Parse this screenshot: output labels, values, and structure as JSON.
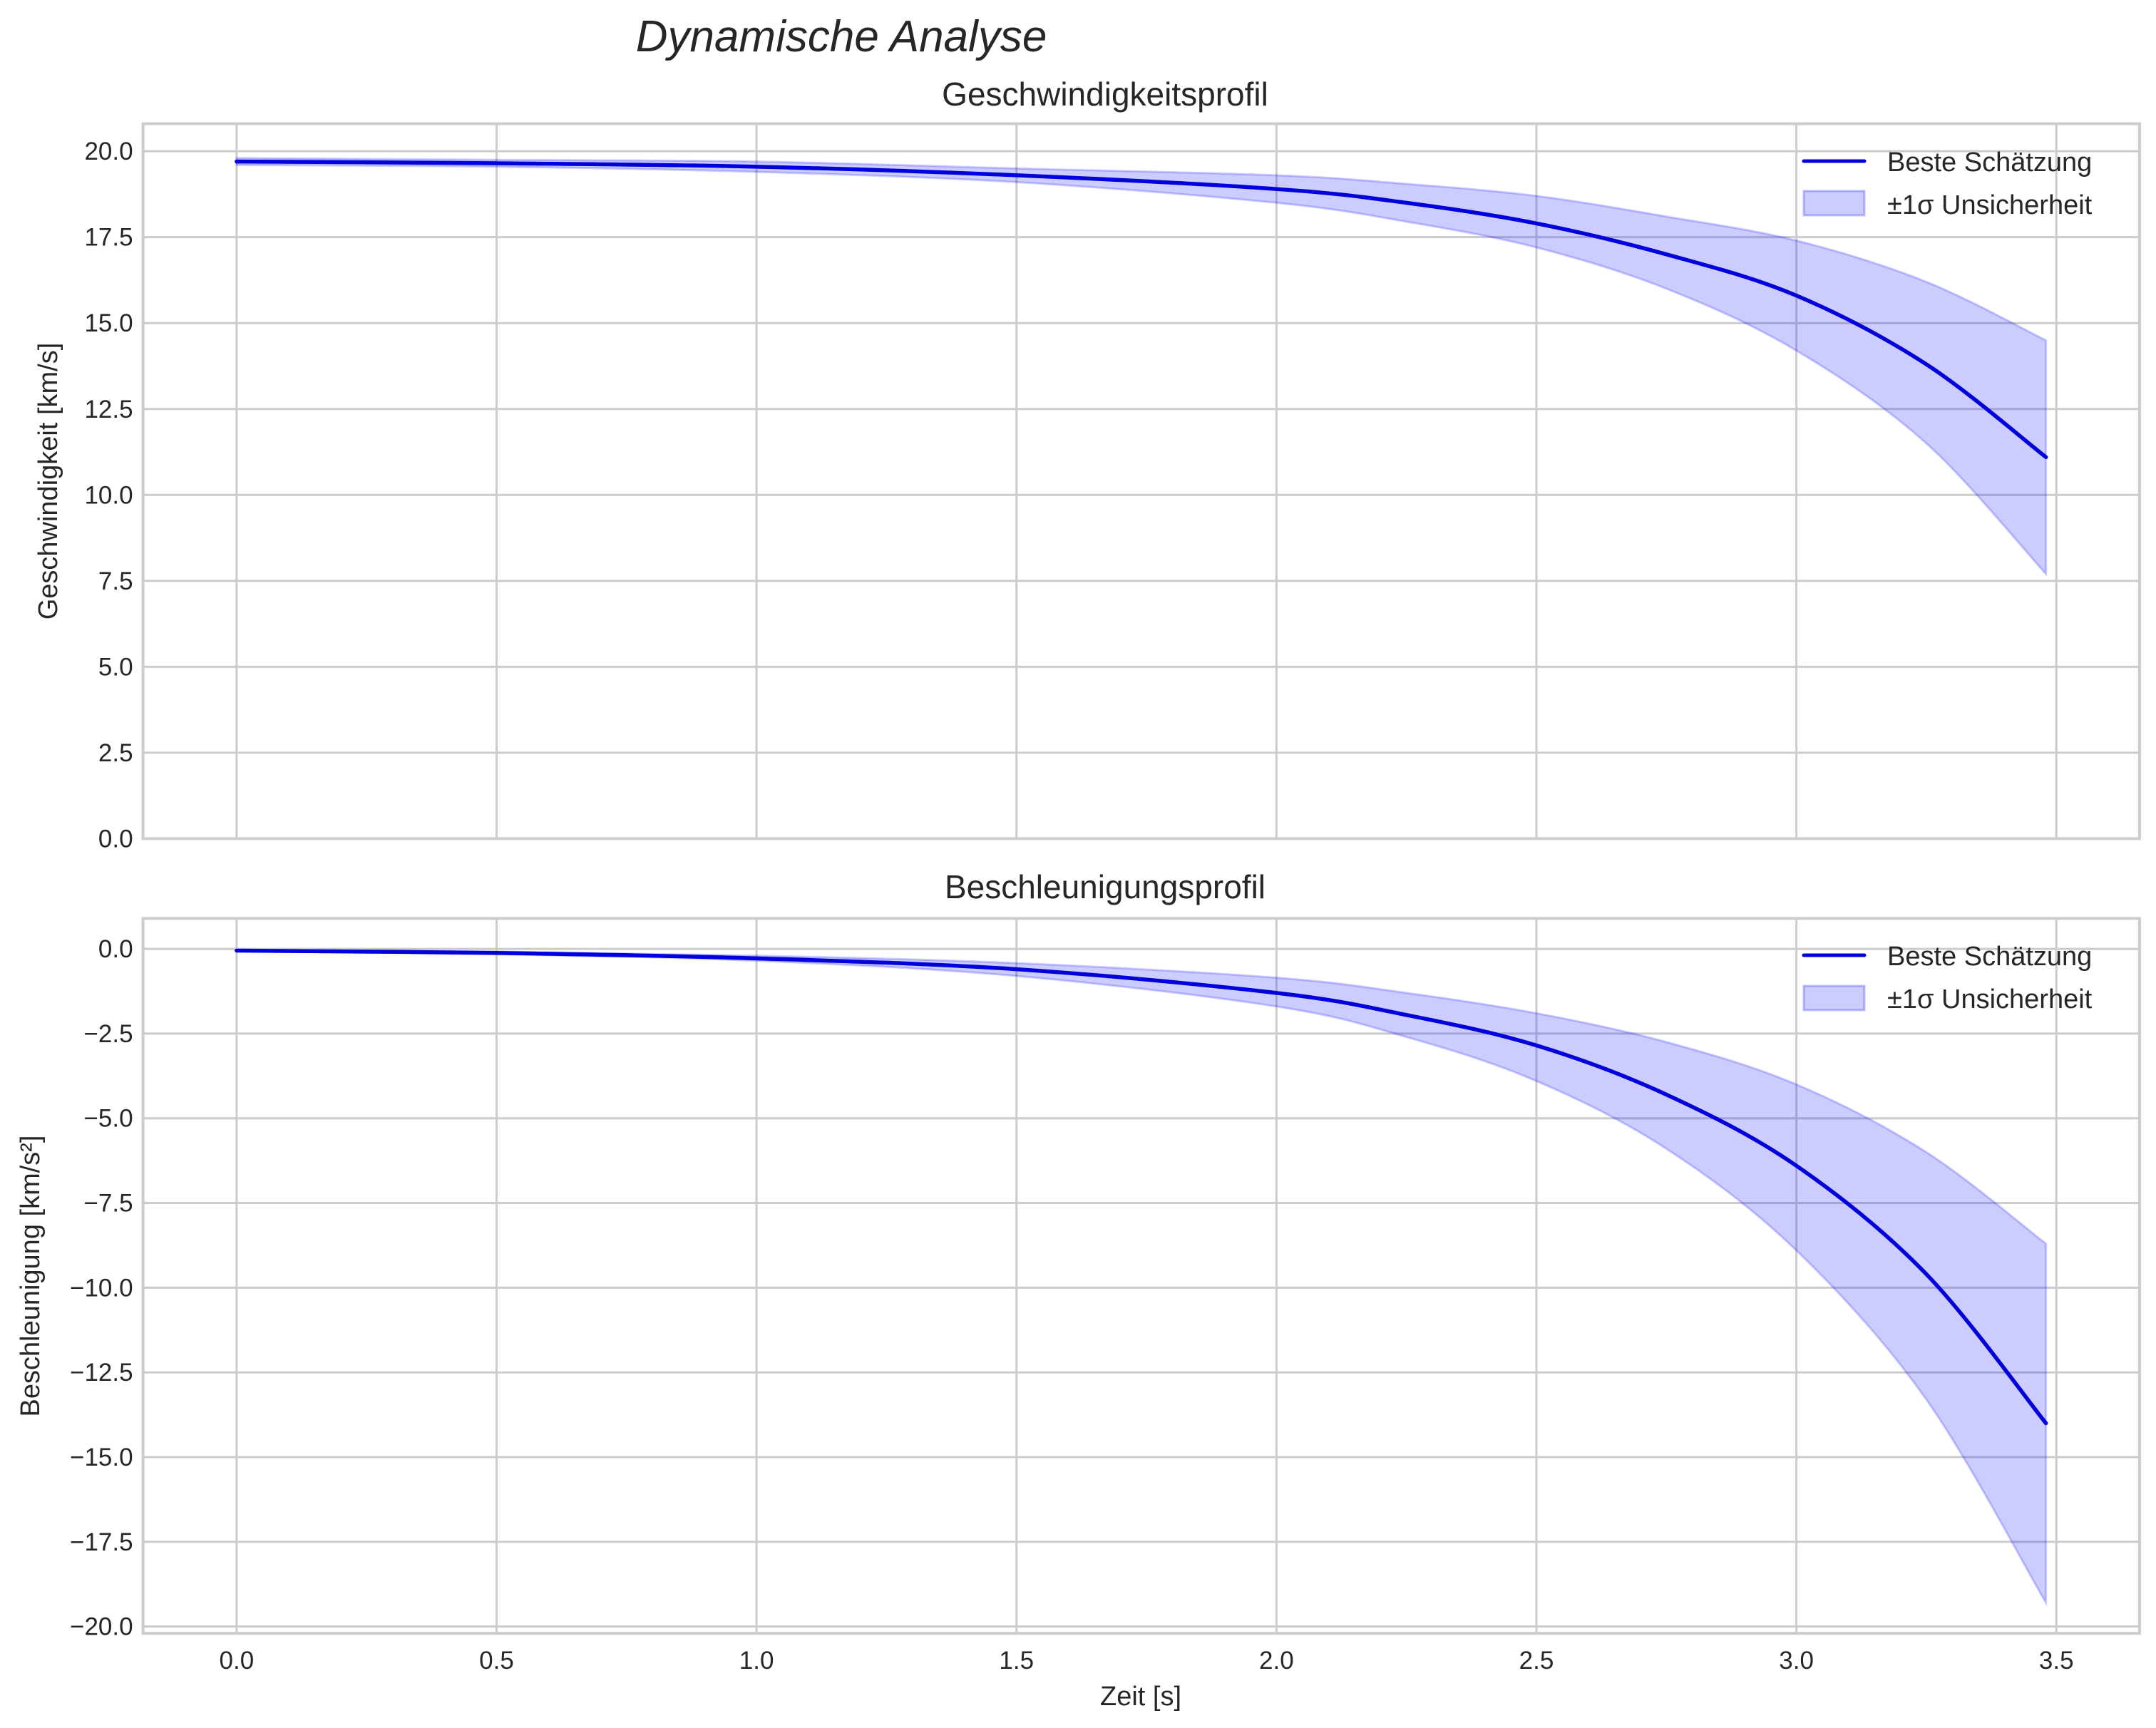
{
  "figure": {
    "suptitle": "Dynamische Analyse",
    "colors": {
      "line": "#0000dd",
      "band_fill": "#0000ff",
      "band_alpha": 0.2,
      "grid": "#cccccc",
      "spine": "#cccccc",
      "text": "#262626"
    }
  },
  "chart_data": [
    {
      "type": "line",
      "title": "Geschwindigkeitsprofil",
      "xlabel": "",
      "ylabel": "Geschwindigkeit [km/s]",
      "xlim": [
        -0.18,
        3.66
      ],
      "ylim": [
        0.0,
        20.8
      ],
      "grid": true,
      "legend_position": "upper right",
      "xticks": [
        "0.0",
        "0.5",
        "1.0",
        "1.5",
        "2.0",
        "2.5",
        "3.0",
        "3.5"
      ],
      "xtick_values": [
        0.0,
        0.5,
        1.0,
        1.5,
        2.0,
        2.5,
        3.0,
        3.5
      ],
      "yticks": [
        "0.0",
        "2.5",
        "5.0",
        "7.5",
        "10.0",
        "12.5",
        "15.0",
        "17.5",
        "20.0"
      ],
      "ytick_values": [
        0.0,
        2.5,
        5.0,
        7.5,
        10.0,
        12.5,
        15.0,
        17.5,
        20.0
      ],
      "x": [
        0.0,
        0.5,
        1.0,
        1.5,
        2.0,
        2.25,
        2.5,
        2.75,
        3.0,
        3.25,
        3.48
      ],
      "series": [
        {
          "name": "Beste Schätzung",
          "kind": "line",
          "values": [
            19.7,
            19.65,
            19.55,
            19.3,
            18.9,
            18.5,
            17.9,
            17.0,
            15.8,
            13.8,
            11.1
          ]
        },
        {
          "name": "±1σ Unsicherheit",
          "kind": "band",
          "lower": [
            19.6,
            19.55,
            19.4,
            19.1,
            18.5,
            17.95,
            17.2,
            16.0,
            14.2,
            11.5,
            7.7
          ],
          "upper": [
            19.8,
            19.75,
            19.7,
            19.5,
            19.3,
            19.05,
            18.7,
            18.1,
            17.4,
            16.2,
            14.5
          ]
        }
      ]
    },
    {
      "type": "line",
      "title": "Beschleunigungsprofil",
      "xlabel": "Zeit [s]",
      "ylabel": "Beschleunigung [km/s²]",
      "xlim": [
        -0.18,
        3.66
      ],
      "ylim": [
        -20.2,
        0.9
      ],
      "grid": true,
      "legend_position": "upper right",
      "xticks": [
        "0.0",
        "0.5",
        "1.0",
        "1.5",
        "2.0",
        "2.5",
        "3.0",
        "3.5"
      ],
      "xtick_values": [
        0.0,
        0.5,
        1.0,
        1.5,
        2.0,
        2.5,
        3.0,
        3.5
      ],
      "yticks": [
        "0.0",
        "−2.5",
        "−5.0",
        "−7.5",
        "−10.0",
        "−12.5",
        "−15.0",
        "−17.5",
        "−20.0"
      ],
      "ytick_values": [
        0.0,
        -2.5,
        -5.0,
        -7.5,
        -10.0,
        -12.5,
        -15.0,
        -17.5,
        -20.0
      ],
      "x": [
        0.0,
        0.5,
        1.0,
        1.5,
        2.0,
        2.25,
        2.5,
        2.75,
        3.0,
        3.25,
        3.48
      ],
      "series": [
        {
          "name": "Beste Schätzung",
          "kind": "line",
          "values": [
            -0.05,
            -0.12,
            -0.28,
            -0.6,
            -1.3,
            -1.95,
            -2.85,
            -4.3,
            -6.4,
            -9.6,
            -14.0
          ]
        },
        {
          "name": "±1σ Unsicherheit",
          "kind": "band",
          "lower": [
            -0.07,
            -0.16,
            -0.35,
            -0.8,
            -1.7,
            -2.6,
            -3.9,
            -5.9,
            -8.9,
            -13.3,
            -19.3
          ],
          "upper": [
            -0.03,
            -0.08,
            -0.2,
            -0.42,
            -0.85,
            -1.3,
            -1.9,
            -2.75,
            -4.0,
            -6.0,
            -8.7
          ]
        }
      ]
    }
  ],
  "legend": {
    "line_label": "Beste Schätzung",
    "band_label": "±1σ Unsicherheit"
  }
}
